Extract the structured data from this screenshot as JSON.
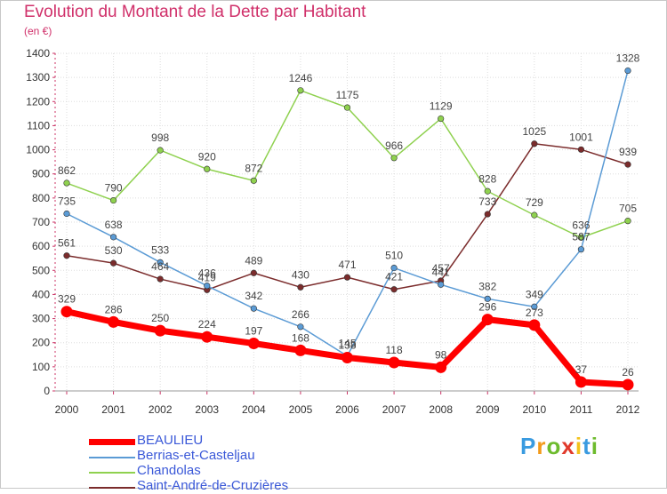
{
  "title": "Evolution du Montant de la Dette par Habitant",
  "subtitle": "(en €)",
  "brand": {
    "letters": [
      "P",
      "r",
      "o",
      "x",
      "i",
      "t",
      "i"
    ],
    "colors": [
      "#3a9be0",
      "#f39a1a",
      "#6dbb2d",
      "#e13a2b",
      "#f3c21a",
      "#3a9be0",
      "#6dbb2d"
    ]
  },
  "chart_data": {
    "type": "line",
    "title": "Evolution du Montant de la Dette par Habitant",
    "ylabel": "(en €)",
    "xlabel": "",
    "ylim": [
      0,
      1400
    ],
    "yticks": [
      0,
      100,
      200,
      300,
      400,
      500,
      600,
      700,
      800,
      900,
      1000,
      1100,
      1200,
      1300,
      1400
    ],
    "x": [
      "2000",
      "2001",
      "2002",
      "2003",
      "2004",
      "2005",
      "2006",
      "2007",
      "2008",
      "2009",
      "2010",
      "2011",
      "2012"
    ],
    "grid": true,
    "legend": "bottom-left",
    "series": [
      {
        "name": "BEAULIEU",
        "color": "#ff0000",
        "values": [
          329,
          286,
          250,
          224,
          197,
          168,
          138,
          118,
          98,
          296,
          273,
          37,
          26
        ]
      },
      {
        "name": "Berrias-et-Casteljau",
        "color": "#5b9bd5",
        "values": [
          735,
          638,
          533,
          436,
          342,
          266,
          145,
          510,
          441,
          382,
          349,
          587,
          1328
        ]
      },
      {
        "name": "Chandolas",
        "color": "#8fd14f",
        "values": [
          862,
          790,
          998,
          920,
          872,
          1246,
          1175,
          966,
          1129,
          828,
          729,
          636,
          705
        ]
      },
      {
        "name": "Saint-André-de-Cruzières",
        "color": "#7b2c2c",
        "values": [
          561,
          530,
          464,
          419,
          489,
          430,
          471,
          421,
          457,
          733,
          1025,
          1001,
          939
        ]
      }
    ]
  }
}
